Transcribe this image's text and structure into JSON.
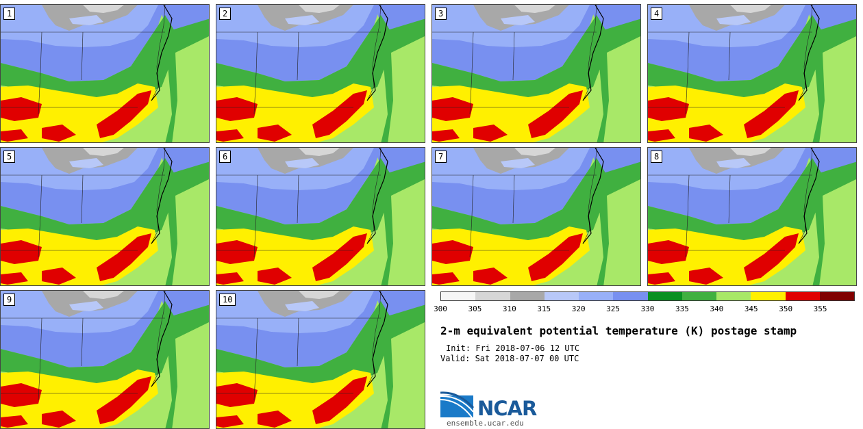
{
  "title": "2-m equivalent potential temperature (K) postage stamp",
  "init": "Init: Fri 2018-07-06 12 UTC",
  "valid": "Valid: Sat 2018-07-07 00 UTC",
  "org_name": "NCAR",
  "url": "ensemble.ucar.edu",
  "colorbar": {
    "unit": "K",
    "ticks": [
      "300",
      "305",
      "310",
      "315",
      "320",
      "325",
      "330",
      "335",
      "340",
      "345",
      "350",
      "355"
    ],
    "colors": [
      "#f6f6f6",
      "#d6d6d6",
      "#a8a8a8",
      "#b8c8f8",
      "#98b0f8",
      "#7890f0",
      "#089020",
      "#40b040",
      "#a8e868",
      "#fff000",
      "#e00000",
      "#800000"
    ]
  },
  "panels": [
    {
      "label": "1"
    },
    {
      "label": "2"
    },
    {
      "label": "3"
    },
    {
      "label": "4"
    },
    {
      "label": "5"
    },
    {
      "label": "6"
    },
    {
      "label": "7"
    },
    {
      "label": "8"
    },
    {
      "label": "9"
    },
    {
      "label": "10"
    }
  ]
}
